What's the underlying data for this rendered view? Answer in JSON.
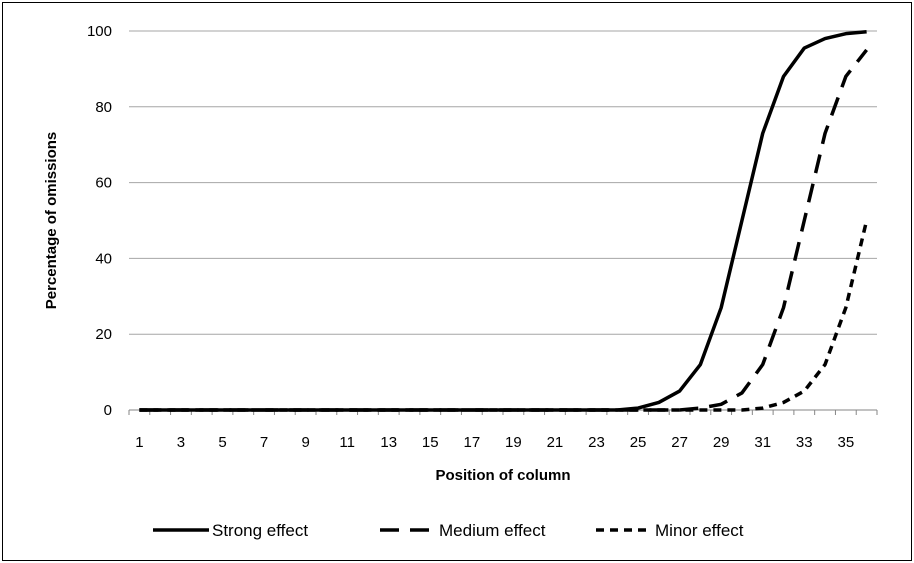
{
  "chart_data": {
    "type": "line",
    "title": "",
    "xlabel": "Position of column",
    "ylabel": "Percentage of omissions",
    "x": [
      1,
      2,
      3,
      4,
      5,
      6,
      7,
      8,
      9,
      10,
      11,
      12,
      13,
      14,
      15,
      16,
      17,
      18,
      19,
      20,
      21,
      22,
      23,
      24,
      25,
      26,
      27,
      28,
      29,
      30,
      31,
      32,
      33,
      34,
      35,
      36
    ],
    "x_tick_labels": [
      "1",
      "3",
      "5",
      "7",
      "9",
      "11",
      "13",
      "15",
      "17",
      "19",
      "21",
      "23",
      "25",
      "27",
      "29",
      "31",
      "33",
      "35"
    ],
    "xlim": [
      1,
      36
    ],
    "ylim": [
      0,
      100
    ],
    "y_ticks": [
      0,
      20,
      40,
      60,
      80,
      100
    ],
    "grid": "horizontal",
    "legend_position": "bottom",
    "series": [
      {
        "name": "Strong effect",
        "line_style": "solid",
        "values": [
          0,
          0,
          0,
          0,
          0,
          0,
          0,
          0,
          0,
          0,
          0,
          0,
          0,
          0,
          0,
          0,
          0,
          0,
          0,
          0,
          0,
          0,
          0,
          0,
          0.5,
          2,
          5,
          12,
          27,
          50,
          73,
          88,
          95.5,
          98,
          99.3,
          99.8
        ]
      },
      {
        "name": "Medium effect",
        "line_style": "long-dash",
        "values": [
          0,
          0,
          0,
          0,
          0,
          0,
          0,
          0,
          0,
          0,
          0,
          0,
          0,
          0,
          0,
          0,
          0,
          0,
          0,
          0,
          0,
          0,
          0,
          0,
          0,
          0,
          0,
          0.5,
          1.5,
          4.5,
          12,
          27,
          50,
          73,
          88,
          95
        ]
      },
      {
        "name": "Minor effect",
        "line_style": "short-dash",
        "values": [
          0,
          0,
          0,
          0,
          0,
          0,
          0,
          0,
          0,
          0,
          0,
          0,
          0,
          0,
          0,
          0,
          0,
          0,
          0,
          0,
          0,
          0,
          0,
          0,
          0,
          0,
          0,
          0,
          0,
          0,
          0.5,
          2,
          5,
          12,
          27,
          50
        ]
      }
    ],
    "colors": {
      "line": "#000000",
      "grid": "#a6a6a6",
      "axis": "#868686"
    }
  }
}
